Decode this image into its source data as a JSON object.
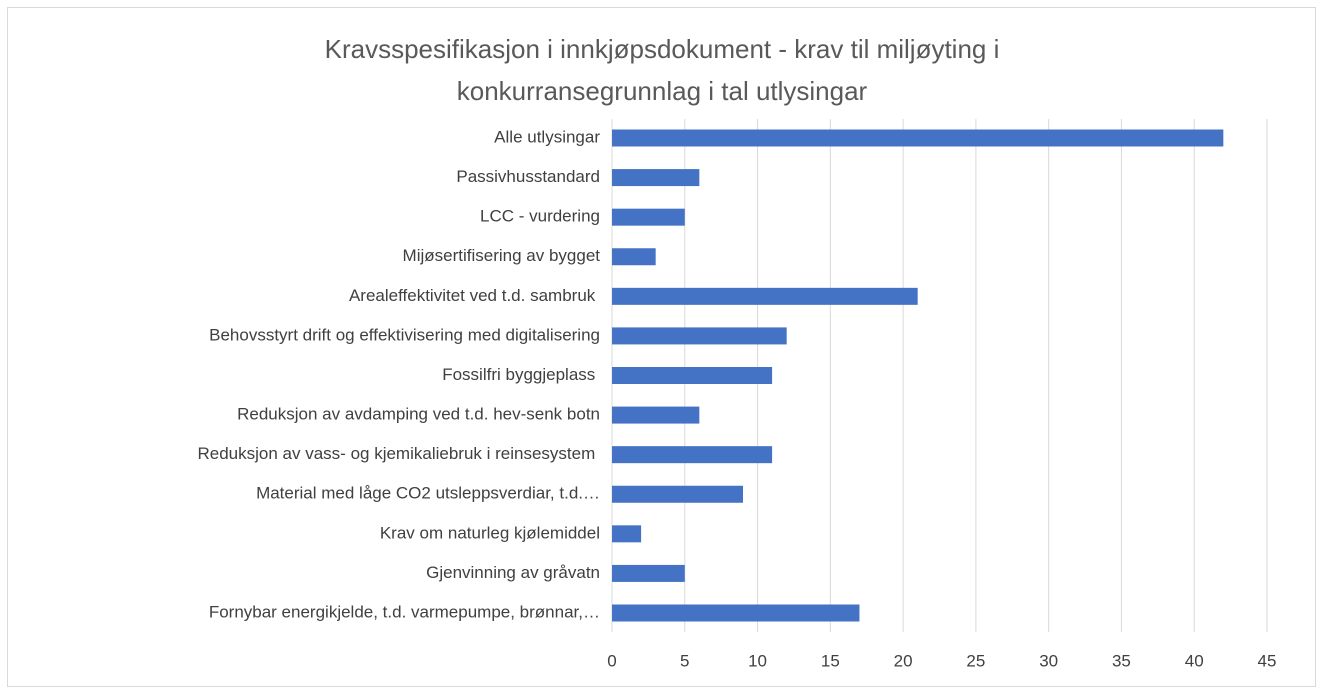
{
  "chart_data": {
    "type": "bar",
    "orientation": "horizontal",
    "title": "Kravsspesifikasjon i innkjøpsdokument - krav til miljøyting i konkurransegrunnlag i tal utlysingar",
    "categories": [
      "Alle utlysingar",
      "Passivhusstandard",
      "LCC - vurdering",
      "Mijøsertifisering av bygget",
      "Arealeffektivitet ved t.d. sambruk ",
      "Behovsstyrt drift og effektivisering med digitalisering",
      "Fossilfri byggjeplass ",
      "Reduksjon av avdamping ved t.d. hev-senk botn",
      "Reduksjon av vass- og kjemikaliebruk i reinsesystem ",
      "Material med låge CO2 utsleppsverdiar, t.d.…",
      "Krav om naturleg kjølemiddel",
      "Gjenvinning av gråvatn",
      "Fornybar energikjelde, t.d. varmepumpe, brønnar,…"
    ],
    "values": [
      42,
      6,
      5,
      3,
      21,
      12,
      11,
      6,
      11,
      9,
      2,
      5,
      17
    ],
    "color": "#4472c4",
    "xlim": [
      0,
      45
    ],
    "xticks": [
      0,
      5,
      10,
      15,
      20,
      25,
      30,
      35,
      40,
      45
    ],
    "grid": true
  }
}
